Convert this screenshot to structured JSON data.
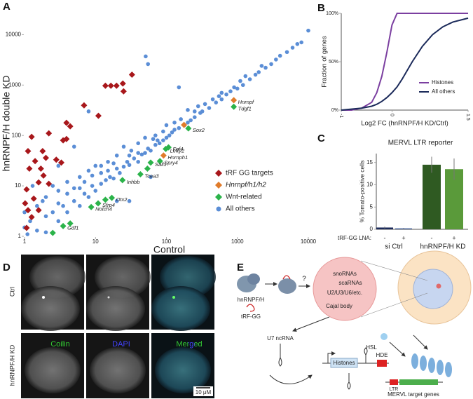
{
  "panel_labels": [
    "A",
    "B",
    "C",
    "D",
    "E"
  ],
  "chart_data": [
    {
      "type": "scatter",
      "xlabel": "Control",
      "ylabel": "hnRNPF/H double KD",
      "xscale": "log",
      "yscale": "log",
      "xlim": [
        1,
        12000
      ],
      "ylim": [
        1,
        30000
      ],
      "xticks": [
        1,
        10,
        100,
        1000,
        10000
      ],
      "yticks": [
        1,
        10,
        100,
        1000,
        10000
      ],
      "legend": "lower right",
      "series": [
        {
          "name": "tRF GG targets",
          "color": "#a8171b",
          "marker": "diamond",
          "x": [
            32.7,
            13.8,
            16.5,
            19.8,
            24.9,
            24.3,
            11,
            6.9,
            4.4,
            3.9,
            3.5,
            2.2,
            1.8,
            1.26,
            1.12,
            1.17,
            1.41,
            1.85,
            1.58,
            2.2,
            1.07,
            1.35,
            1.12,
            1.58,
            1.07,
            1.26,
            2.8,
            2,
            3.3,
            3.9,
            1.7,
            1.02
          ],
          "values": [
            1600,
            970,
            970,
            970,
            750,
            1070,
            245,
            395,
            152,
            178,
            80,
            110,
            49,
            94,
            49,
            22,
            31,
            16,
            11.7,
            11,
            8.5,
            5.6,
            3.3,
            3.3,
            1.47,
            2.4,
            33,
            36,
            29,
            85,
            22,
            4.5
          ]
        },
        {
          "name": "Hnrnpf/h1/h2",
          "color": "#e07b2a",
          "marker": "diamond",
          "italic": true,
          "x": [
            890,
            91,
            177
          ],
          "values": [
            500,
            40,
            162
          ],
          "point_labels": [
            "Hnrnpf",
            "Hnrnph1",
            null
          ]
        },
        {
          "name": "Wnt-related",
          "color": "#2bb34a",
          "marker": "diamond",
          "x": [
            890,
            204,
            107,
            98,
            81,
            60,
            43,
            24,
            17,
            10.9,
            8.7,
            3.5,
            13.8,
            2.5,
            4.4,
            54
          ],
          "values": [
            370,
            138,
            58,
            54,
            31,
            29,
            17,
            13,
            5.8,
            4.5,
            3.8,
            1.6,
            5.3,
            1.17,
            1.8,
            22
          ],
          "point_labels": [
            "Tdgf1",
            "Sox2",
            "Fgf4",
            "Lefty2",
            "Spry4",
            "Sall1",
            "Tcea3",
            "Inhbb",
            "Otx2",
            "Sfrp4",
            "Notch4",
            "Gdf1",
            null,
            null,
            null,
            null
          ]
        },
        {
          "name": "All others",
          "color": "#5b8ed6",
          "marker": "circle",
          "x": [
            1,
            1,
            1.2,
            1.5,
            1.5,
            2,
            2,
            2.5,
            3,
            3,
            3.5,
            4,
            4,
            5,
            5,
            6,
            6,
            7,
            8,
            8,
            9,
            10,
            10,
            12,
            12,
            14,
            15,
            16,
            18,
            20,
            20,
            22,
            25,
            25,
            28,
            30,
            32,
            35,
            40,
            40,
            45,
            50,
            50,
            55,
            60,
            65,
            70,
            75,
            80,
            90,
            100,
            100,
            110,
            120,
            130,
            150,
            160,
            180,
            200,
            200,
            220,
            250,
            280,
            300,
            320,
            350,
            400,
            450,
            500,
            550,
            600,
            700,
            800,
            900,
            1000,
            1100,
            1200,
            1500,
            1800,
            2000,
            2500,
            3000,
            3500,
            4000,
            5000,
            6000,
            8000,
            10000,
            3,
            5,
            8,
            20,
            150,
            51,
            55,
            30,
            60,
            1.3,
            1.1,
            2,
            1.8,
            2.5,
            3,
            4,
            6,
            7,
            9,
            12,
            15,
            18,
            30,
            40,
            70,
            90,
            130,
            250,
            600,
            1300,
            2200,
            7000
          ],
          "values": [
            1.5,
            3,
            2,
            1.3,
            4,
            2.5,
            6,
            3,
            2,
            8,
            4,
            3,
            12,
            5,
            9,
            4,
            15,
            7,
            6,
            20,
            10,
            8,
            25,
            11,
            18,
            13,
            30,
            15,
            14,
            40,
            22,
            18,
            24,
            60,
            30,
            26,
            50,
            35,
            30,
            70,
            42,
            45,
            90,
            55,
            50,
            85,
            65,
            80,
            70,
            120,
            90,
            160,
            100,
            115,
            180,
            140,
            210,
            160,
            180,
            320,
            200,
            230,
            380,
            280,
            300,
            420,
            350,
            520,
            450,
            600,
            520,
            650,
            750,
            900,
            850,
            1200,
            1000,
            1300,
            1600,
            1800,
            2200,
            2600,
            3200,
            3800,
            4500,
            5500,
            7000,
            12000,
            25,
            60,
            300,
            5,
            900,
            3700,
            2600,
            5,
            15,
            10,
            1.1,
            1.2,
            5,
            10,
            4.5,
            7,
            9,
            12,
            16,
            25,
            20,
            28,
            40,
            45,
            100,
            80,
            130,
            300,
            700,
            1500,
            2400,
            6500
          ]
        }
      ]
    },
    {
      "type": "line",
      "xlabel": "Log2 FC (hnRNPF/H KD/Ctrl)",
      "ylabel": "Fraction of genes",
      "x": [
        -1,
        -0.8,
        -0.6,
        -0.4,
        -0.3,
        -0.2,
        -0.1,
        0,
        0.1,
        0.2,
        0.4,
        0.6,
        0.8,
        1,
        1.2,
        1.5
      ],
      "xlim": [
        -1,
        1.5
      ],
      "xticks": [
        -1,
        0,
        1.5
      ],
      "ylim": [
        0,
        100
      ],
      "yticks": [
        {
          "value": 0,
          "label": "0%"
        },
        {
          "value": 50,
          "label": "50%"
        },
        {
          "value": 100,
          "label": "100%"
        }
      ],
      "legend": "lower right",
      "series": [
        {
          "name": "Histones",
          "color": "#7b3fa0",
          "values": [
            0,
            0,
            2,
            8,
            18,
            35,
            60,
            88,
            100,
            100,
            100,
            100,
            100,
            100,
            100,
            100
          ]
        },
        {
          "name": "All others",
          "color": "#1b2a5a",
          "values": [
            0,
            1,
            2,
            4,
            6,
            9,
            13,
            18,
            24,
            32,
            50,
            66,
            78,
            86,
            91,
            95
          ]
        }
      ]
    },
    {
      "type": "bar",
      "title": "MERVL LTR reporter",
      "ylabel": "% Tomato-positive cells",
      "x_prefix": "tRF-GG LNA:",
      "categories": [
        "-",
        "+",
        "-",
        "+"
      ],
      "groups": [
        "si Ctrl",
        "hnRNPF/H KD"
      ],
      "values": [
        0.4,
        0.2,
        14.5,
        13.5
      ],
      "errors": [
        0.2,
        0.1,
        1.8,
        2.4
      ],
      "colors": [
        "#1b2a5a",
        "#2c4d8c",
        "#2f5a22",
        "#5a9a3a"
      ],
      "ylim": [
        0,
        17
      ],
      "yticks": [
        0,
        5,
        10,
        15
      ]
    }
  ],
  "microscopy": {
    "row_labels": [
      "Ctrl",
      "hnRNPF/H KD"
    ],
    "channel_labels": [
      "Coilin",
      "DAPI",
      "Merged"
    ],
    "scale_bar": "10 μM"
  },
  "diagram": {
    "protein": "hnRNPF/H",
    "trf": "tRF-GG",
    "question": "?",
    "cajal": [
      "snoRNAs",
      "scaRNAs",
      "U2/U3/U6/etc.",
      "Cajal body"
    ],
    "u7": "U7 ncRNA",
    "histones": "Histones",
    "hsl": "HSL",
    "hde": "HDE",
    "ltr": "LTR",
    "targets": "MERVL target genes"
  }
}
